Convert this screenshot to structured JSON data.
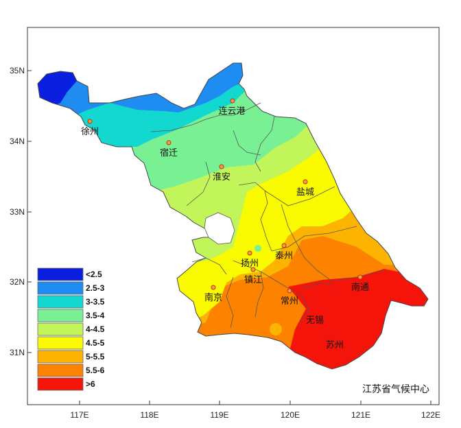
{
  "map": {
    "credit": "江苏省气候中心",
    "x_ticks": [
      "117E",
      "118E",
      "119E",
      "120E",
      "121E",
      "122E"
    ],
    "y_ticks": [
      "35N",
      "34N",
      "33N",
      "32N",
      "31N"
    ],
    "legend": [
      {
        "label": "<2.5",
        "color": "#0a1ee0"
      },
      {
        "label": "2.5-3",
        "color": "#1e8cf0"
      },
      {
        "label": "3-3.5",
        "color": "#12d8d0"
      },
      {
        "label": "3.5-4",
        "color": "#7af094"
      },
      {
        "label": "4-4.5",
        "color": "#c2f55a"
      },
      {
        "label": "4.5-5",
        "color": "#fafa00"
      },
      {
        "label": "5-5.5",
        "color": "#fcb400"
      },
      {
        "label": "5.5-6",
        "color": "#fc8200"
      },
      {
        "label": ">6",
        "color": "#f5140a"
      }
    ],
    "cities": [
      {
        "name": "连云港"
      },
      {
        "name": "徐州"
      },
      {
        "name": "宿迁"
      },
      {
        "name": "淮安"
      },
      {
        "name": "盐城"
      },
      {
        "name": "扬州"
      },
      {
        "name": "泰州"
      },
      {
        "name": "镇江"
      },
      {
        "name": "南京"
      },
      {
        "name": "常州"
      },
      {
        "name": "南通"
      },
      {
        "name": "无锡"
      },
      {
        "name": "苏州"
      }
    ]
  }
}
